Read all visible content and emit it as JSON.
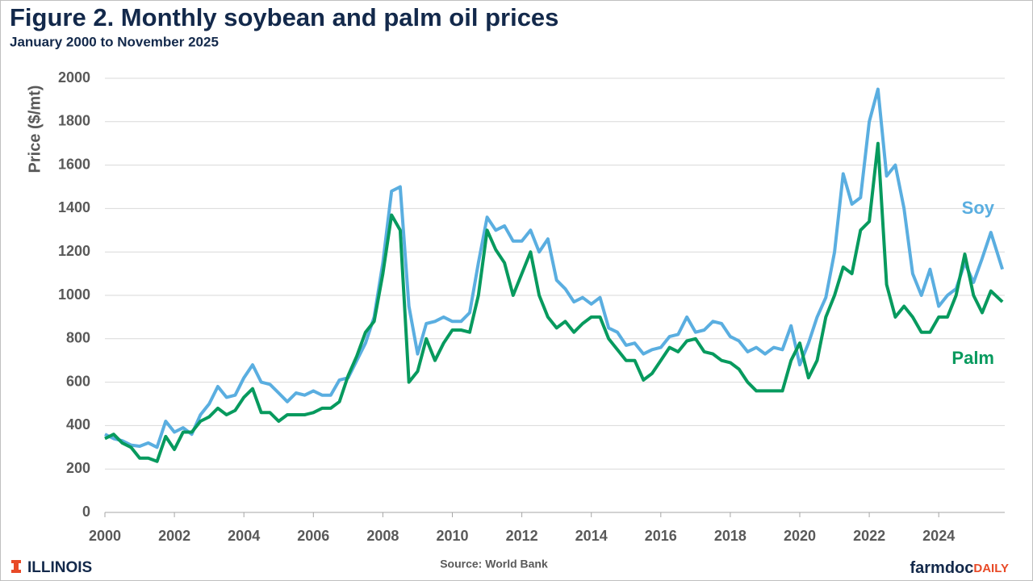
{
  "chart_data": {
    "type": "line",
    "title": "Figure 2. Monthly soybean and palm oil prices",
    "subtitle": "January 2000 to November 2025",
    "y_label": "Price ($/mt)",
    "source": "Source: World Bank",
    "footer_left": "ILLINOIS",
    "footer_right_a": "farmdoc",
    "footer_right_b": "DAILY",
    "x": [
      2000,
      2000.25,
      2000.5,
      2000.75,
      2001,
      2001.25,
      2001.5,
      2001.75,
      2002,
      2002.25,
      2002.5,
      2002.75,
      2003,
      2003.25,
      2003.5,
      2003.75,
      2004,
      2004.25,
      2004.5,
      2004.75,
      2005,
      2005.25,
      2005.5,
      2005.75,
      2006,
      2006.25,
      2006.5,
      2006.75,
      2007,
      2007.25,
      2007.5,
      2007.75,
      2008,
      2008.25,
      2008.5,
      2008.75,
      2009,
      2009.25,
      2009.5,
      2009.75,
      2010,
      2010.25,
      2010.5,
      2010.75,
      2011,
      2011.25,
      2011.5,
      2011.75,
      2012,
      2012.25,
      2012.5,
      2012.75,
      2013,
      2013.25,
      2013.5,
      2013.75,
      2014,
      2014.25,
      2014.5,
      2014.75,
      2015,
      2015.25,
      2015.5,
      2015.75,
      2016,
      2016.25,
      2016.5,
      2016.75,
      2017,
      2017.25,
      2017.5,
      2017.75,
      2018,
      2018.25,
      2018.5,
      2018.75,
      2019,
      2019.25,
      2019.5,
      2019.75,
      2020,
      2020.25,
      2020.5,
      2020.75,
      2021,
      2021.25,
      2021.5,
      2021.75,
      2022,
      2022.25,
      2022.5,
      2022.75,
      2023,
      2023.25,
      2023.5,
      2023.75,
      2024,
      2024.25,
      2024.5,
      2024.75,
      2025,
      2025.25,
      2025.5,
      2025.833
    ],
    "series": [
      {
        "name": "Soy",
        "color": "#5aaee0",
        "values": [
          360,
          340,
          330,
          310,
          305,
          320,
          300,
          420,
          370,
          390,
          360,
          450,
          500,
          580,
          530,
          540,
          620,
          680,
          600,
          590,
          550,
          510,
          550,
          540,
          560,
          540,
          540,
          610,
          620,
          700,
          780,
          900,
          1150,
          1480,
          1500,
          950,
          730,
          870,
          880,
          900,
          880,
          880,
          920,
          1150,
          1360,
          1300,
          1320,
          1250,
          1250,
          1300,
          1200,
          1260,
          1070,
          1030,
          970,
          990,
          960,
          990,
          850,
          830,
          770,
          780,
          730,
          750,
          760,
          810,
          820,
          900,
          830,
          840,
          880,
          870,
          810,
          790,
          740,
          760,
          730,
          760,
          750,
          860,
          680,
          780,
          900,
          990,
          1200,
          1560,
          1420,
          1450,
          1800,
          1950,
          1550,
          1600,
          1400,
          1100,
          1000,
          1120,
          950,
          1000,
          1030,
          1150,
          1060,
          1170,
          1290,
          1120
        ]
      },
      {
        "name": "Palm",
        "color": "#079a5e",
        "values": [
          340,
          360,
          320,
          300,
          250,
          250,
          235,
          350,
          290,
          370,
          370,
          420,
          440,
          480,
          450,
          470,
          530,
          570,
          460,
          460,
          420,
          450,
          450,
          450,
          460,
          480,
          480,
          510,
          630,
          720,
          830,
          880,
          1100,
          1370,
          1300,
          600,
          650,
          800,
          700,
          780,
          840,
          840,
          830,
          1000,
          1300,
          1210,
          1150,
          1000,
          1100,
          1200,
          1000,
          900,
          850,
          880,
          830,
          870,
          900,
          900,
          800,
          750,
          700,
          700,
          610,
          640,
          700,
          760,
          740,
          790,
          800,
          740,
          730,
          700,
          690,
          660,
          600,
          560,
          560,
          560,
          560,
          700,
          780,
          620,
          700,
          900,
          1000,
          1130,
          1100,
          1300,
          1340,
          1700,
          1050,
          900,
          950,
          900,
          830,
          830,
          900,
          900,
          1000,
          1190,
          1000,
          920,
          1020,
          970
        ]
      }
    ],
    "xlim": [
      2000,
      2025.9
    ],
    "xticks": [
      2000,
      2002,
      2004,
      2006,
      2008,
      2010,
      2012,
      2014,
      2016,
      2018,
      2020,
      2022,
      2024
    ],
    "ylim": [
      0,
      2000
    ],
    "yticks": [
      0,
      200,
      400,
      600,
      800,
      1000,
      1200,
      1400,
      1600,
      1800,
      2000
    ],
    "grid": true
  }
}
